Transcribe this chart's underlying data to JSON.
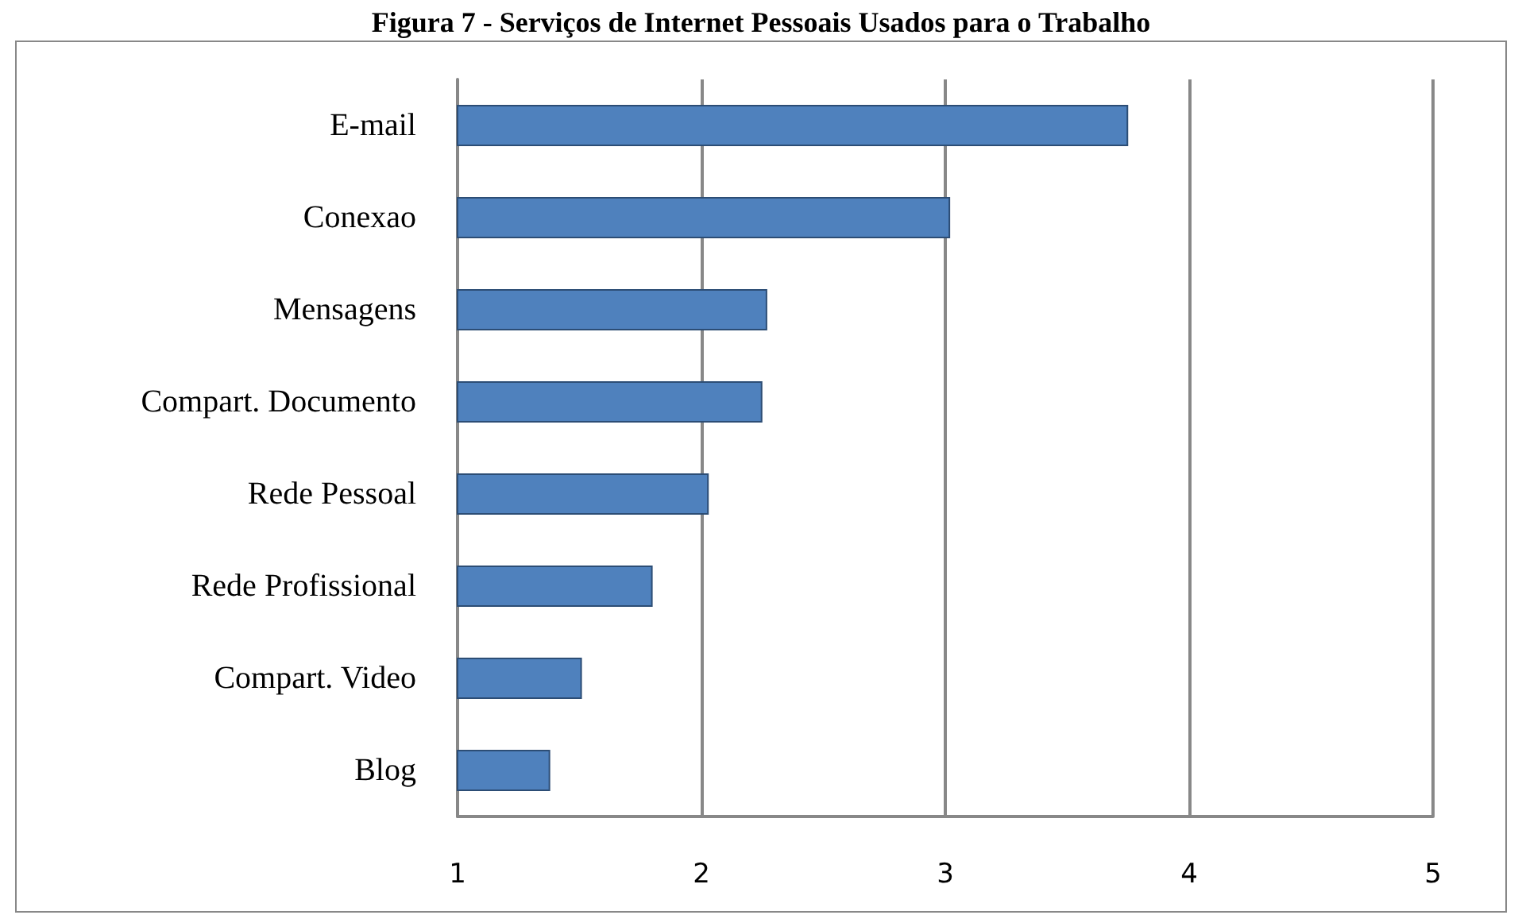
{
  "chart_data": {
    "type": "bar",
    "orientation": "horizontal",
    "title": "Figura 7 - Serviços de Internet Pessoais Usados para o Trabalho",
    "categories": [
      "E-mail",
      "Conexao",
      "Mensagens",
      "Compart. Documento",
      "Rede Pessoal",
      "Rede Profissional",
      "Compart. Video",
      "Blog"
    ],
    "values": [
      3.75,
      3.02,
      2.27,
      2.25,
      2.03,
      1.8,
      1.51,
      1.38
    ],
    "color": "#4f81bd",
    "xlim": [
      1,
      5
    ],
    "xticks": [
      1,
      2,
      3,
      4,
      5
    ],
    "grid": "x"
  }
}
